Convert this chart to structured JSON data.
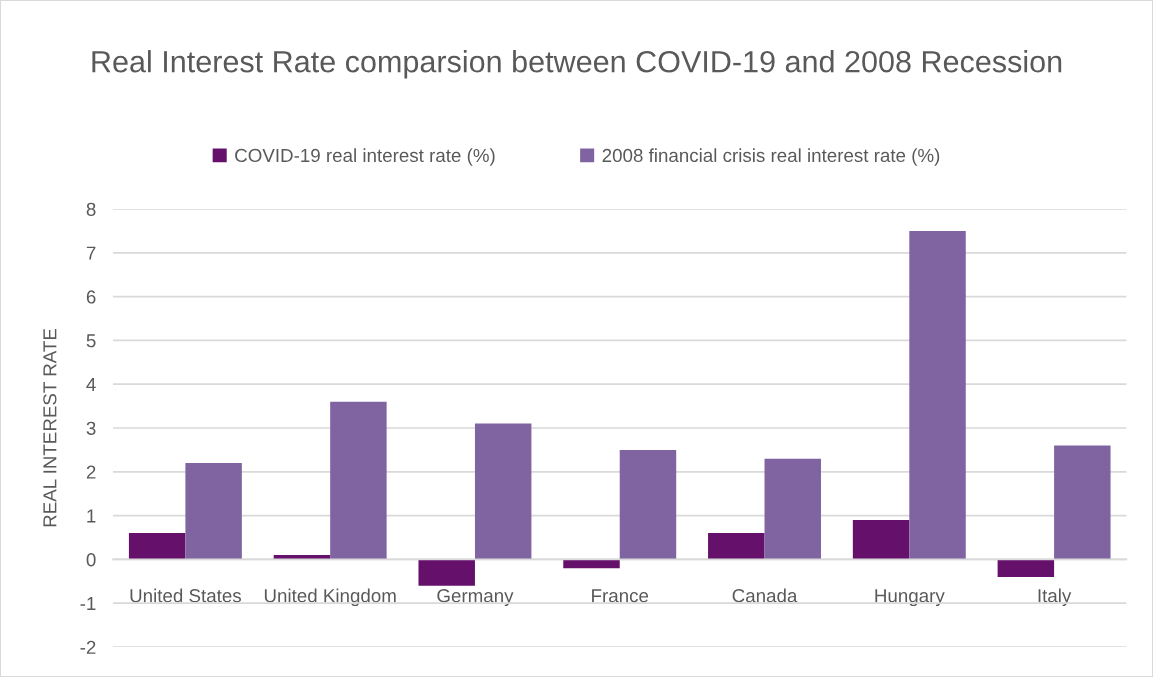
{
  "chart_data": {
    "type": "bar",
    "title": "Real Interest Rate comparsion between COVID-19 and 2008 Recession",
    "ylabel": "REAL INTEREST RATE",
    "categories": [
      "United States",
      "United Kingdom",
      "Germany",
      "France",
      "Canada",
      "Hungary",
      "Italy"
    ],
    "series": [
      {
        "name": "COVID-19 real interest rate (%)",
        "color": "#65106a",
        "values": [
          0.6,
          0.1,
          -0.6,
          -0.2,
          0.6,
          0.9,
          -0.4
        ]
      },
      {
        "name": "2008 financial crisis real interest rate (%)",
        "color": "#8064a2",
        "values": [
          2.2,
          3.6,
          3.1,
          2.5,
          2.3,
          7.5,
          2.6
        ]
      }
    ],
    "ylim": [
      -2,
      8
    ],
    "yticks": [
      -2,
      -1,
      0,
      1,
      2,
      3,
      4,
      5,
      6,
      7,
      8
    ],
    "grid": "y",
    "legend": "top"
  }
}
